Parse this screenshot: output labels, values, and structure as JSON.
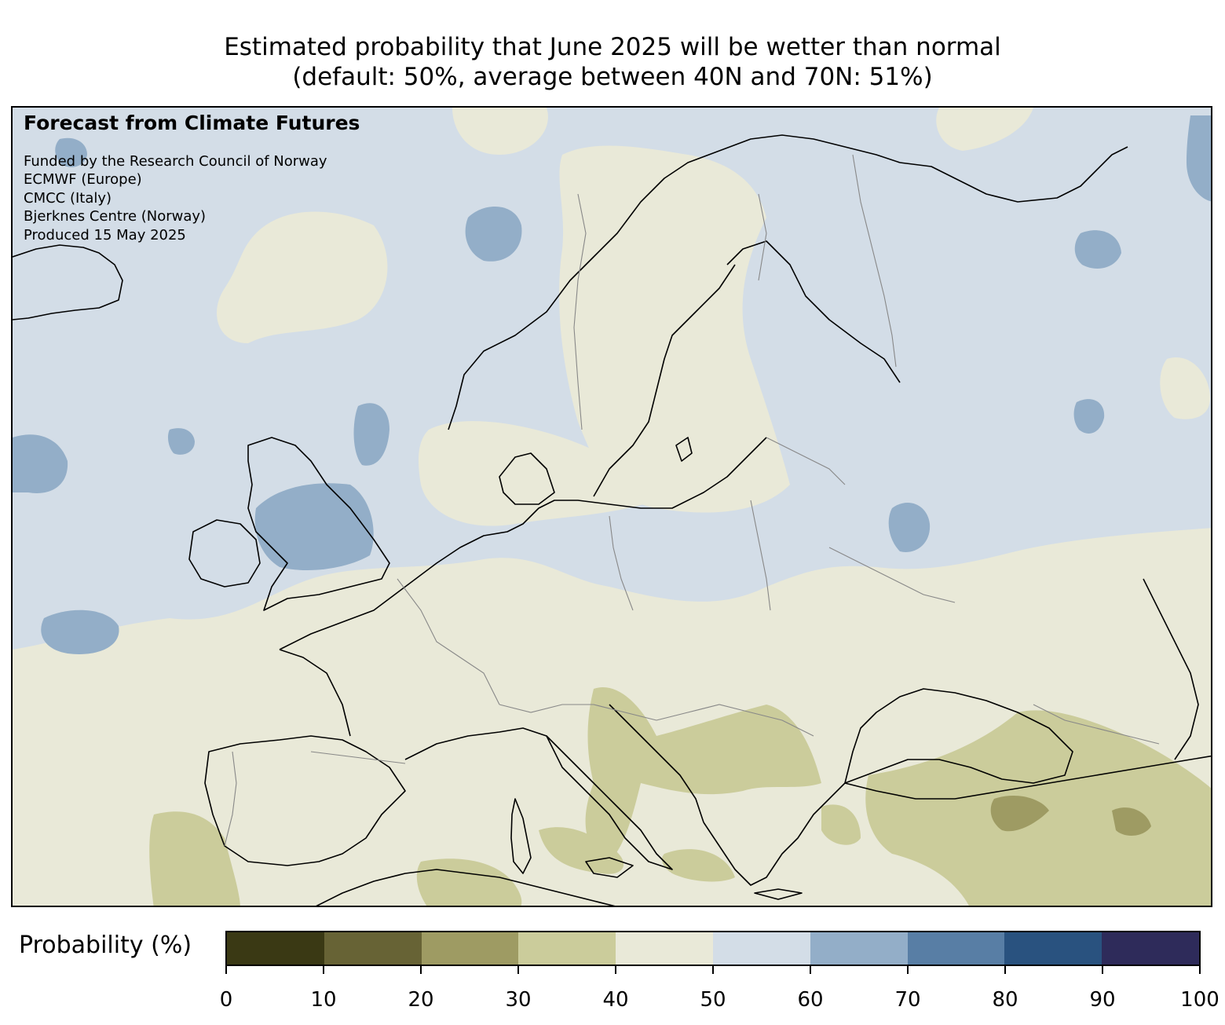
{
  "title": {
    "line1": "Estimated probability that June 2025 will be wetter than normal",
    "line2": "(default: 50%, average between 40N and 70N: 51%)"
  },
  "credits": {
    "heading": "Forecast from Climate Futures",
    "lines": [
      "Funded by the Research Council of Norway",
      "ECMWF (Europe)",
      "CMCC (Italy)",
      "Bjerknes Centre (Norway)",
      "Produced 15 May 2025"
    ]
  },
  "colorbar": {
    "label": "Probability (%)",
    "ticks": [
      "0",
      "10",
      "20",
      "30",
      "40",
      "50",
      "60",
      "70",
      "80",
      "90",
      "100"
    ],
    "colors": [
      "#3a3914",
      "#676335",
      "#9e9b63",
      "#cbcc9b",
      "#e9e9d8",
      "#d3dde7",
      "#93aec8",
      "#587ea5",
      "#29527f",
      "#2e2b5a"
    ]
  },
  "map": {
    "region": "Europe",
    "background_category": "50-60",
    "colors": {
      "c30_40": "#cbcc9b",
      "c20_30": "#9e9b63",
      "c40_50": "#e9e9d8",
      "c50_60": "#d3dde7",
      "c60_70": "#93aec8",
      "coast": "#000000",
      "border": "#888888"
    }
  }
}
